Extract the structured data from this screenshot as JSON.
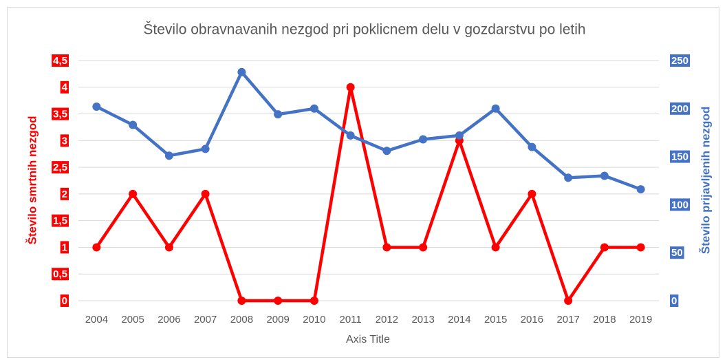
{
  "chart_data": {
    "type": "line",
    "title": "Število obravnavanih nezgod pri poklicnem delu v gozdarstvu po letih",
    "x_label": "Axis Title",
    "y_label": "Število smrtnih nezgod",
    "y2_label": "Število prijavljenih nezgod",
    "categories": [
      "2004",
      "2005",
      "2006",
      "2007",
      "2008",
      "2009",
      "2010",
      "2011",
      "2012",
      "2013",
      "2014",
      "2015",
      "2016",
      "2017",
      "2018",
      "2019"
    ],
    "series": [
      {
        "color": "#ff0000",
        "axis": "y",
        "values": [
          1,
          2,
          1,
          2,
          0,
          0,
          0,
          4,
          1,
          1,
          3,
          1,
          2,
          0,
          1,
          1
        ]
      },
      {
        "color": "#4472c4",
        "axis": "y2",
        "values": [
          202,
          183,
          151,
          158,
          238,
          194,
          200,
          172,
          156,
          168,
          172,
          200,
          160,
          128,
          130,
          116
        ]
      }
    ],
    "ylim": [
      0,
      4.5
    ],
    "yticks": [
      0,
      {
        "value": 0.5,
        "label": "0,5"
      },
      1,
      {
        "value": 1.5,
        "label": "1,5"
      },
      2,
      {
        "value": 2.5,
        "label": "2,5"
      },
      3,
      {
        "value": 3.5,
        "label": "3,5"
      },
      4,
      {
        "value": 4.5,
        "label": "4,5"
      }
    ],
    "y2lim": [
      0,
      250
    ],
    "y2ticks": [
      0,
      50,
      100,
      150,
      200,
      250
    ],
    "grid": true
  }
}
